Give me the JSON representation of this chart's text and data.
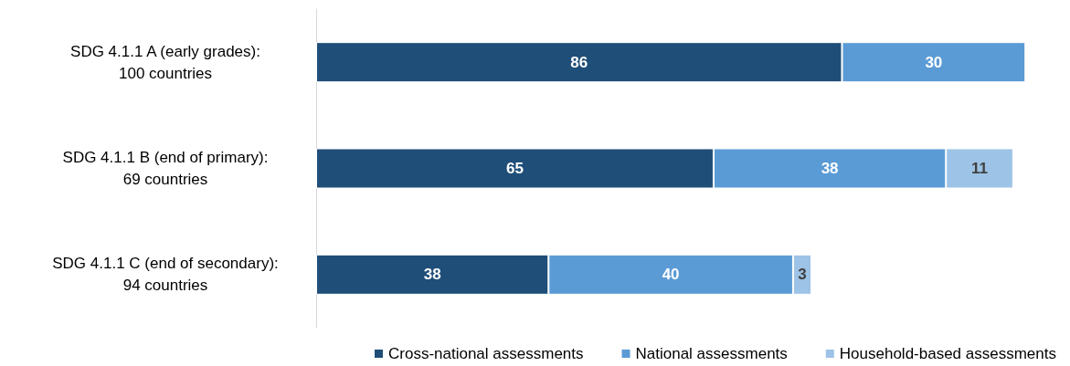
{
  "chart_data": {
    "type": "bar",
    "orientation": "horizontal",
    "stacked": true,
    "data_labels": true,
    "legend": "bottom",
    "categories": [
      "SDG 4.1.1 A (early grades):\n100 countries",
      "SDG 4.1.1 B (end of primary):\n69 countries",
      "SDG 4.1.1 C (end of secondary):\n94 countries"
    ],
    "series": [
      {
        "name": "Cross-national assessments",
        "color": "#1f4e79",
        "values": [
          86,
          65,
          38
        ]
      },
      {
        "name": "National assessments",
        "color": "#5b9bd5",
        "values": [
          30,
          38,
          40
        ]
      },
      {
        "name": "Household-based assessments",
        "color": "#9dc3e6",
        "values": [
          null,
          11,
          3
        ]
      }
    ]
  }
}
